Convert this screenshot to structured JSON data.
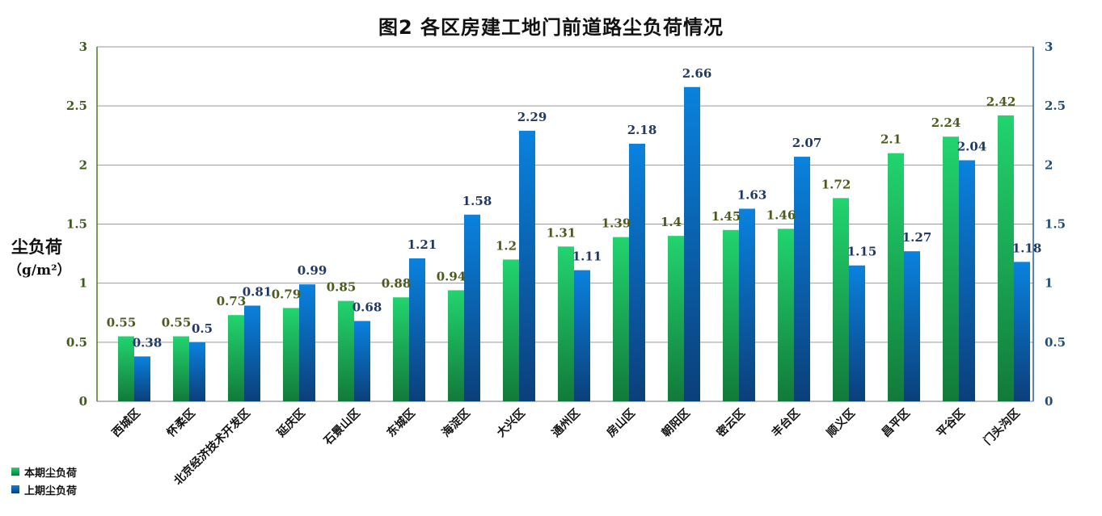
{
  "chart_data": {
    "type": "bar",
    "title": "图2   各区房建工地门前道路尘负荷情况",
    "ylabel": "尘负荷",
    "yunit": "（g/m²）",
    "ylim": [
      0,
      3
    ],
    "yticks": [
      "0",
      "0.5",
      "1",
      "1.5",
      "2",
      "2.5",
      "3"
    ],
    "secondary_ylim": [
      0,
      3
    ],
    "grid": true,
    "legend_position": "bottom-left",
    "categories": [
      "西城区",
      "怀柔区",
      "北京经济技术开发区",
      "延庆区",
      "石景山区",
      "东城区",
      "海淀区",
      "大兴区",
      "通州区",
      "房山区",
      "朝阳区",
      "密云区",
      "丰台区",
      "顺义区",
      "昌平区",
      "平谷区",
      "门头沟区"
    ],
    "series": [
      {
        "name": "本期尘负荷",
        "color": "#1fc46a",
        "values": [
          0.55,
          0.55,
          0.73,
          0.79,
          0.85,
          0.88,
          0.94,
          1.2,
          1.31,
          1.39,
          1.4,
          1.45,
          1.46,
          1.72,
          2.1,
          2.24,
          2.42
        ]
      },
      {
        "name": "上期尘负荷",
        "color": "#0a78d0",
        "values": [
          0.38,
          0.5,
          0.81,
          0.99,
          0.68,
          1.21,
          1.58,
          2.29,
          1.11,
          2.18,
          2.66,
          1.63,
          2.07,
          1.15,
          1.27,
          2.04,
          1.18
        ]
      }
    ]
  }
}
